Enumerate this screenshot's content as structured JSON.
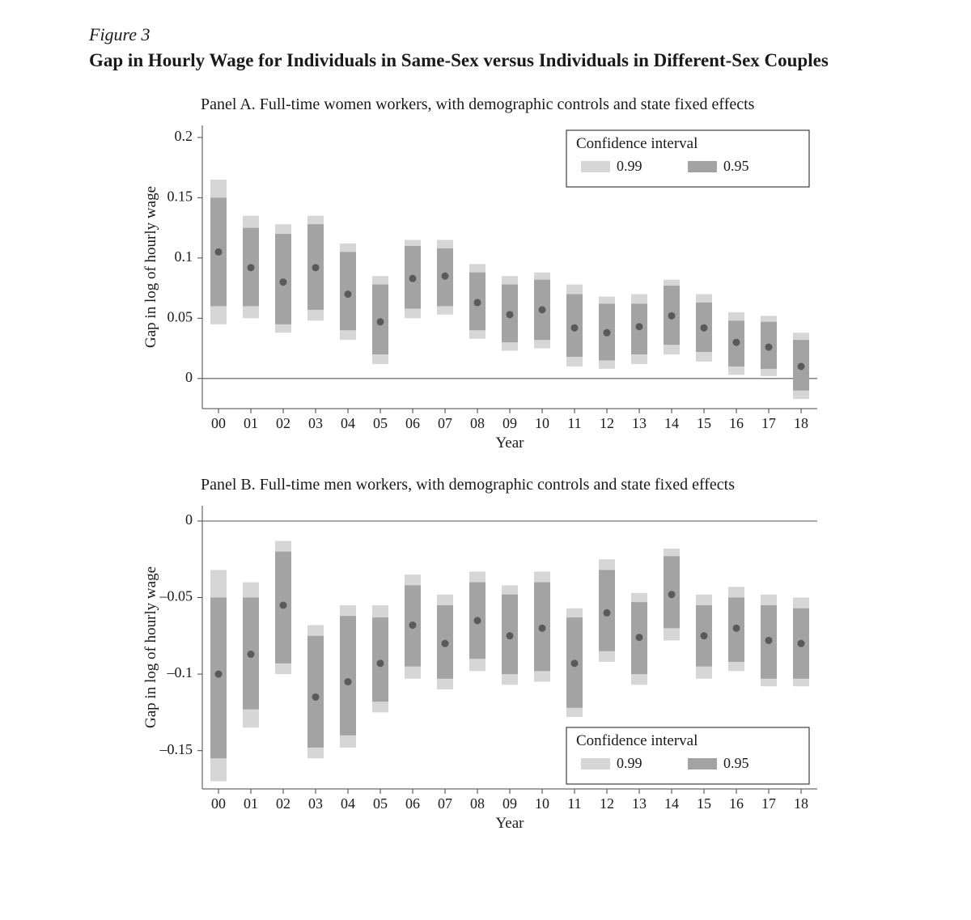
{
  "figure_label": "Figure 3",
  "figure_title": "Gap in Hourly Wage for Individuals in Same-Sex versus Individuals in Different-Sex Couples",
  "legend": {
    "title": "Confidence interval",
    "item99": "0.99",
    "item95": "0.95"
  },
  "colors": {
    "ci99": "#d6d6d6",
    "ci95": "#a3a3a3",
    "point": "#5a5a5a",
    "axis": "#444444",
    "zero_line": "#6a6a6a",
    "legend_border": "#1a1a1a",
    "text": "#1a1a1a",
    "bg": "#ffffff"
  },
  "style": {
    "bar_width95": 20,
    "bar_width99": 20,
    "point_radius": 4.5,
    "axis_stroke": 1,
    "zero_stroke": 1.2,
    "tick_len": 6,
    "tick_fontsize": 18,
    "axis_label_fontsize": 19,
    "legend_fontsize": 18,
    "legend_title_fontsize": 19
  },
  "x_categories": [
    "00",
    "01",
    "02",
    "03",
    "04",
    "05",
    "06",
    "07",
    "08",
    "09",
    "10",
    "11",
    "12",
    "13",
    "14",
    "15",
    "16",
    "17",
    "18"
  ],
  "panelA": {
    "title": "Panel A. Full-time women workers, with demographic controls and state fixed effects",
    "y_label": "Gap in log of hourly wage",
    "x_label": "Year",
    "y_ticks": [
      0,
      0.05,
      0.1,
      0.15,
      0.2
    ],
    "y_tick_labels": [
      "0",
      "0.05",
      "0.1",
      "0.15",
      "0.2"
    ],
    "ylim": [
      -0.025,
      0.21
    ],
    "zero_line": 0.0,
    "legend_pos": "top-right",
    "series": [
      {
        "pt": 0.105,
        "lo95": 0.06,
        "hi95": 0.15,
        "lo99": 0.045,
        "hi99": 0.165
      },
      {
        "pt": 0.092,
        "lo95": 0.06,
        "hi95": 0.125,
        "lo99": 0.05,
        "hi99": 0.135
      },
      {
        "pt": 0.08,
        "lo95": 0.045,
        "hi95": 0.12,
        "lo99": 0.038,
        "hi99": 0.128
      },
      {
        "pt": 0.092,
        "lo95": 0.057,
        "hi95": 0.128,
        "lo99": 0.048,
        "hi99": 0.135
      },
      {
        "pt": 0.07,
        "lo95": 0.04,
        "hi95": 0.105,
        "lo99": 0.032,
        "hi99": 0.112
      },
      {
        "pt": 0.047,
        "lo95": 0.02,
        "hi95": 0.078,
        "lo99": 0.012,
        "hi99": 0.085
      },
      {
        "pt": 0.083,
        "lo95": 0.058,
        "hi95": 0.11,
        "lo99": 0.05,
        "hi99": 0.115
      },
      {
        "pt": 0.085,
        "lo95": 0.06,
        "hi95": 0.108,
        "lo99": 0.053,
        "hi99": 0.115
      },
      {
        "pt": 0.063,
        "lo95": 0.04,
        "hi95": 0.088,
        "lo99": 0.033,
        "hi99": 0.095
      },
      {
        "pt": 0.053,
        "lo95": 0.03,
        "hi95": 0.078,
        "lo99": 0.023,
        "hi99": 0.085
      },
      {
        "pt": 0.057,
        "lo95": 0.032,
        "hi95": 0.082,
        "lo99": 0.025,
        "hi99": 0.088
      },
      {
        "pt": 0.042,
        "lo95": 0.018,
        "hi95": 0.07,
        "lo99": 0.01,
        "hi99": 0.078
      },
      {
        "pt": 0.038,
        "lo95": 0.015,
        "hi95": 0.062,
        "lo99": 0.008,
        "hi99": 0.068
      },
      {
        "pt": 0.043,
        "lo95": 0.02,
        "hi95": 0.062,
        "lo99": 0.012,
        "hi99": 0.07
      },
      {
        "pt": 0.052,
        "lo95": 0.028,
        "hi95": 0.077,
        "lo99": 0.02,
        "hi99": 0.082
      },
      {
        "pt": 0.042,
        "lo95": 0.022,
        "hi95": 0.063,
        "lo99": 0.014,
        "hi99": 0.07
      },
      {
        "pt": 0.03,
        "lo95": 0.01,
        "hi95": 0.048,
        "lo99": 0.003,
        "hi99": 0.055
      },
      {
        "pt": 0.026,
        "lo95": 0.008,
        "hi95": 0.047,
        "lo99": 0.002,
        "hi99": 0.052
      },
      {
        "pt": 0.01,
        "lo95": -0.01,
        "hi95": 0.032,
        "lo99": -0.017,
        "hi99": 0.038
      }
    ]
  },
  "panelB": {
    "title": "Panel B. Full-time men workers, with demographic controls and state fixed effects",
    "y_label": "Gap in log of hourly wage",
    "x_label": "Year",
    "y_ticks": [
      -0.15,
      -0.1,
      -0.05,
      0
    ],
    "y_tick_labels": [
      "–0.15",
      "–0.1",
      "–0.05",
      "0"
    ],
    "ylim": [
      -0.175,
      0.01
    ],
    "zero_line": 0.0,
    "legend_pos": "bottom-right",
    "series": [
      {
        "pt": -0.1,
        "lo95": -0.155,
        "hi95": -0.05,
        "lo99": -0.17,
        "hi99": -0.032
      },
      {
        "pt": -0.087,
        "lo95": -0.123,
        "hi95": -0.05,
        "lo99": -0.135,
        "hi99": -0.04
      },
      {
        "pt": -0.055,
        "lo95": -0.093,
        "hi95": -0.02,
        "lo99": -0.1,
        "hi99": -0.013
      },
      {
        "pt": -0.115,
        "lo95": -0.148,
        "hi95": -0.075,
        "lo99": -0.155,
        "hi99": -0.068
      },
      {
        "pt": -0.105,
        "lo95": -0.14,
        "hi95": -0.062,
        "lo99": -0.148,
        "hi99": -0.055
      },
      {
        "pt": -0.093,
        "lo95": -0.118,
        "hi95": -0.063,
        "lo99": -0.125,
        "hi99": -0.055
      },
      {
        "pt": -0.068,
        "lo95": -0.095,
        "hi95": -0.042,
        "lo99": -0.103,
        "hi99": -0.035
      },
      {
        "pt": -0.08,
        "lo95": -0.103,
        "hi95": -0.055,
        "lo99": -0.11,
        "hi99": -0.048
      },
      {
        "pt": -0.065,
        "lo95": -0.09,
        "hi95": -0.04,
        "lo99": -0.098,
        "hi99": -0.033
      },
      {
        "pt": -0.075,
        "lo95": -0.1,
        "hi95": -0.048,
        "lo99": -0.107,
        "hi99": -0.042
      },
      {
        "pt": -0.07,
        "lo95": -0.098,
        "hi95": -0.04,
        "lo99": -0.105,
        "hi99": -0.033
      },
      {
        "pt": -0.093,
        "lo95": -0.122,
        "hi95": -0.063,
        "lo99": -0.128,
        "hi99": -0.057
      },
      {
        "pt": -0.06,
        "lo95": -0.085,
        "hi95": -0.032,
        "lo99": -0.092,
        "hi99": -0.025
      },
      {
        "pt": -0.076,
        "lo95": -0.1,
        "hi95": -0.053,
        "lo99": -0.107,
        "hi99": -0.047
      },
      {
        "pt": -0.048,
        "lo95": -0.07,
        "hi95": -0.023,
        "lo99": -0.078,
        "hi99": -0.018
      },
      {
        "pt": -0.075,
        "lo95": -0.095,
        "hi95": -0.055,
        "lo99": -0.103,
        "hi99": -0.048
      },
      {
        "pt": -0.07,
        "lo95": -0.092,
        "hi95": -0.05,
        "lo99": -0.098,
        "hi99": -0.043
      },
      {
        "pt": -0.078,
        "lo95": -0.103,
        "hi95": -0.055,
        "lo99": -0.108,
        "hi99": -0.048
      },
      {
        "pt": -0.08,
        "lo95": -0.103,
        "hi95": -0.057,
        "lo99": -0.108,
        "hi99": -0.05
      }
    ]
  }
}
